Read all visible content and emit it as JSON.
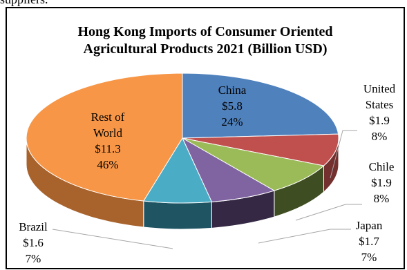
{
  "header_text": "suppliers.",
  "chart_data": {
    "type": "pie",
    "title_lines": [
      "Hong Kong Imports of Consumer Oriented",
      "Agricultural Products 2021 (Billion USD)"
    ],
    "slices": [
      {
        "label_lines": [
          "China"
        ],
        "value": "$5.8",
        "percent": "24%",
        "pct": 24,
        "color": "#4F81BD",
        "side": "#2F4C71"
      },
      {
        "label_lines": [
          "United",
          "States"
        ],
        "value": "$1.9",
        "percent": "8%",
        "pct": 8,
        "color": "#C0504D",
        "side": "#73302E"
      },
      {
        "label_lines": [
          "Chile"
        ],
        "value": "$1.9",
        "percent": "8%",
        "pct": 8,
        "color": "#9BBB59",
        "side": "#3F4E22"
      },
      {
        "label_lines": [
          "Japan"
        ],
        "value": "$1.7",
        "percent": "7%",
        "pct": 7,
        "color": "#8064A2",
        "side": "#352844"
      },
      {
        "label_lines": [
          "Brazil"
        ],
        "value": "$1.6",
        "percent": "7%",
        "pct": 7,
        "color": "#4BACC6",
        "side": "#1F5563"
      },
      {
        "label_lines": [
          "Rest of",
          "World"
        ],
        "value": "$11.3",
        "percent": "46%",
        "pct": 46,
        "color": "#F79646",
        "side": "#A8622B"
      }
    ]
  }
}
